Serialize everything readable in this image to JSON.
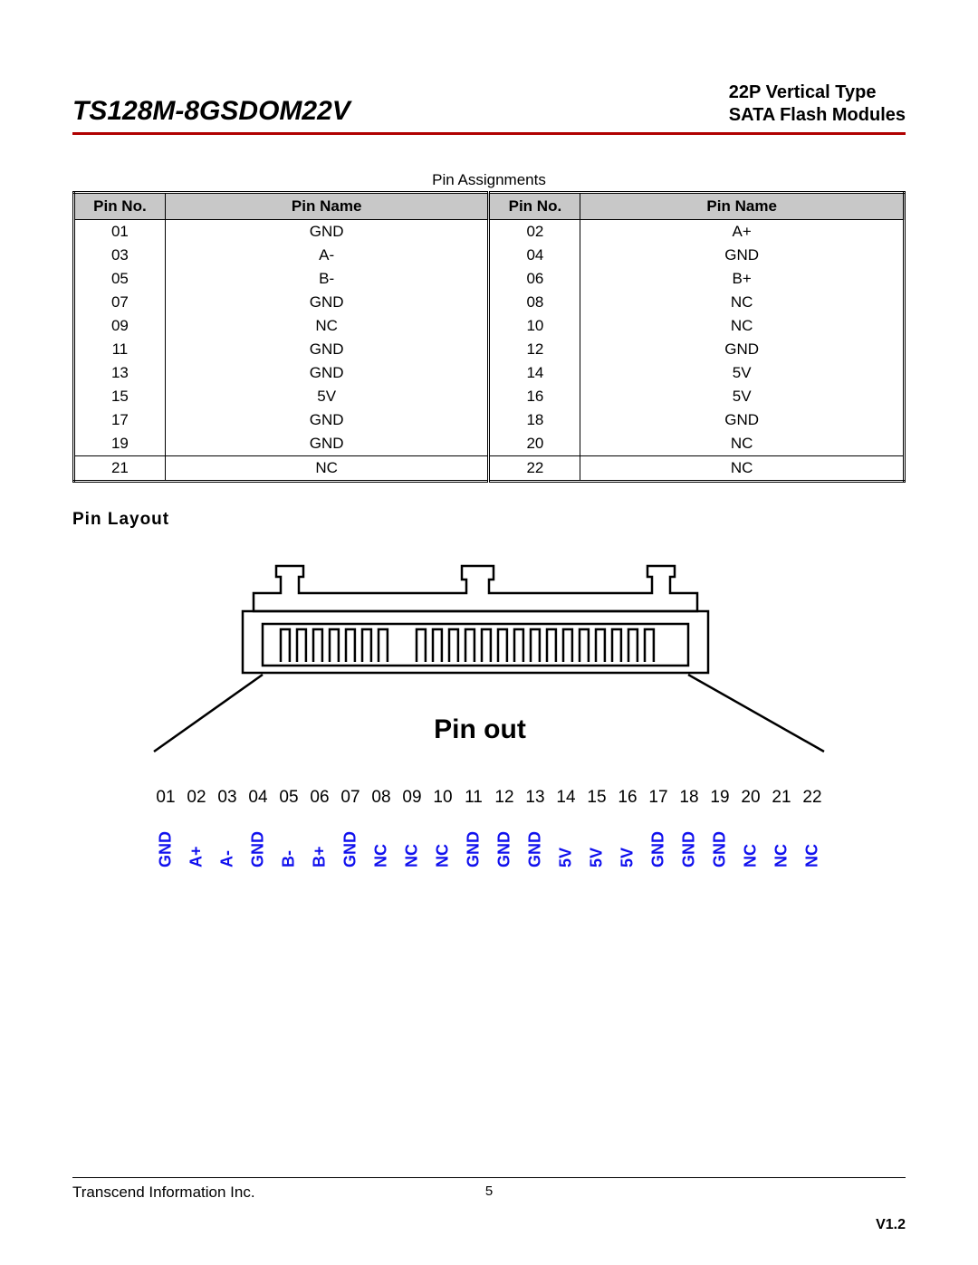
{
  "header": {
    "part_number": "TS128M-8GSDOM22V",
    "subtitle_line1": "22P Vertical Type",
    "subtitle_line2": "SATA Flash Modules",
    "rule_color": "#b00000"
  },
  "table": {
    "caption": "Pin Assignments",
    "columns": [
      "Pin No.",
      "Pin Name",
      "Pin No.",
      "Pin Name"
    ],
    "header_bg": "#c8c8c8",
    "rows": [
      [
        "01",
        "GND",
        "02",
        "A+"
      ],
      [
        "03",
        "A-",
        "04",
        "GND"
      ],
      [
        "05",
        "B-",
        "06",
        "B+"
      ],
      [
        "07",
        "GND",
        "08",
        "NC"
      ],
      [
        "09",
        "NC",
        "10",
        "NC"
      ],
      [
        "11",
        "GND",
        "12",
        "GND"
      ],
      [
        "13",
        "GND",
        "14",
        "5V"
      ],
      [
        "15",
        "5V",
        "16",
        "5V"
      ],
      [
        "17",
        "GND",
        "18",
        "GND"
      ],
      [
        "19",
        "GND",
        "20",
        "NC"
      ],
      [
        "21",
        "NC",
        "22",
        "NC"
      ]
    ]
  },
  "layout": {
    "section_label": "Pin Layout",
    "pinout_label": "Pin out",
    "pin_numbers": [
      "01",
      "02",
      "03",
      "04",
      "05",
      "06",
      "07",
      "08",
      "09",
      "10",
      "11",
      "12",
      "13",
      "14",
      "15",
      "16",
      "17",
      "18",
      "19",
      "20",
      "21",
      "22"
    ],
    "pin_names": [
      "GND",
      "A+",
      "A-",
      "GND",
      "B-",
      "B+",
      "GND",
      "NC",
      "NC",
      "NC",
      "GND",
      "GND",
      "GND",
      "5V",
      "5V",
      "5V",
      "GND",
      "GND",
      "GND",
      "NC",
      "NC",
      "NC"
    ],
    "pin_name_color": "#1010ee",
    "connector_stroke": "#000000",
    "connector_stroke_width": 2
  },
  "footer": {
    "company": "Transcend Information Inc.",
    "page_number": "5",
    "version": "V1.2"
  }
}
